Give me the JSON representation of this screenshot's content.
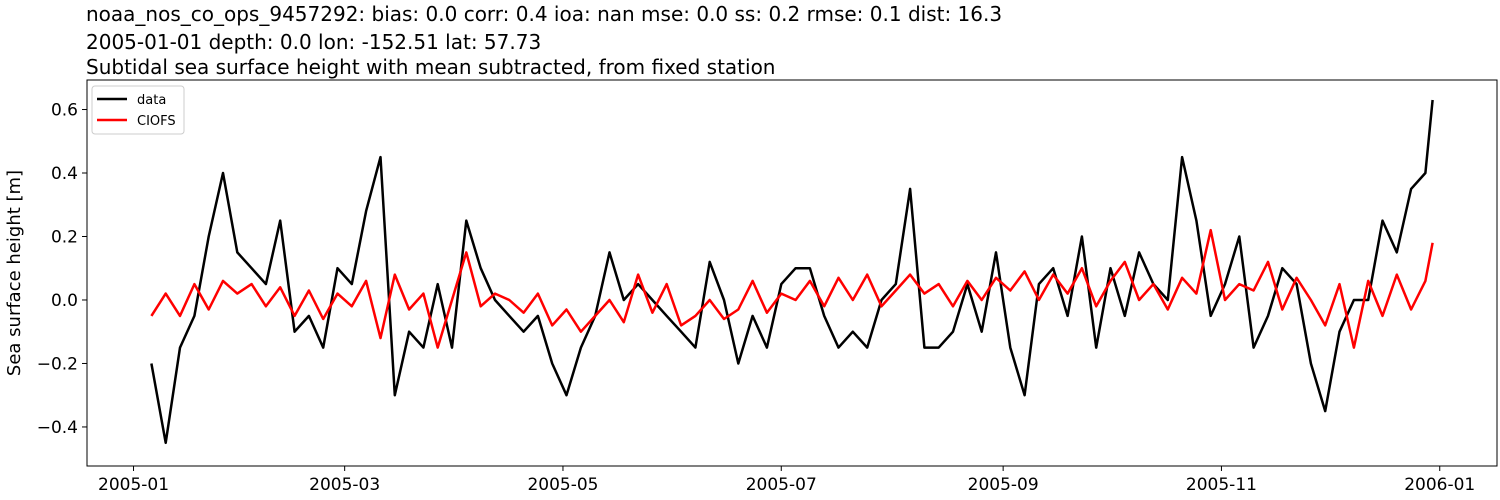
{
  "chart_data": {
    "type": "line",
    "title_lines": [
      "noaa_nos_co_ops_9457292: bias: 0.0  corr: 0.4  ioa: nan  mse: 0.0  ss: 0.2  rmse: 0.1  dist: 16.3",
      "2005-01-01 depth: 0.0 lon: -152.51 lat: 57.73",
      "Subtidal sea surface height with mean subtracted, from fixed station"
    ],
    "xlabel": "",
    "ylabel": "Sea surface height [m]",
    "xlim": [
      "2004-12-19",
      "2006-01-17"
    ],
    "ylim": [
      -0.523,
      0.693
    ],
    "x_ticks": [
      "2005-01",
      "2005-03",
      "2005-05",
      "2005-07",
      "2005-09",
      "2005-11",
      "2006-01"
    ],
    "y_ticks": [
      -0.4,
      -0.2,
      0.0,
      0.2,
      0.4,
      0.6
    ],
    "y_tick_labels": [
      "−0.4",
      "−0.2",
      "0.0",
      "0.2",
      "0.4",
      "0.6"
    ],
    "grid": false,
    "legend_position": "top-left",
    "x": [
      "2005-01-06",
      "2005-01-10",
      "2005-01-14",
      "2005-01-18",
      "2005-01-22",
      "2005-01-26",
      "2005-01-30",
      "2005-02-03",
      "2005-02-07",
      "2005-02-11",
      "2005-02-15",
      "2005-02-19",
      "2005-02-23",
      "2005-02-27",
      "2005-03-03",
      "2005-03-07",
      "2005-03-11",
      "2005-03-15",
      "2005-03-19",
      "2005-03-23",
      "2005-03-27",
      "2005-03-31",
      "2005-04-04",
      "2005-04-08",
      "2005-04-12",
      "2005-04-16",
      "2005-04-20",
      "2005-04-24",
      "2005-04-28",
      "2005-05-02",
      "2005-05-06",
      "2005-05-10",
      "2005-05-14",
      "2005-05-18",
      "2005-05-22",
      "2005-05-26",
      "2005-05-30",
      "2005-06-03",
      "2005-06-07",
      "2005-06-11",
      "2005-06-15",
      "2005-06-19",
      "2005-06-23",
      "2005-06-27",
      "2005-07-01",
      "2005-07-05",
      "2005-07-09",
      "2005-07-13",
      "2005-07-17",
      "2005-07-21",
      "2005-07-25",
      "2005-07-29",
      "2005-08-02",
      "2005-08-06",
      "2005-08-10",
      "2005-08-14",
      "2005-08-18",
      "2005-08-22",
      "2005-08-26",
      "2005-08-30",
      "2005-09-03",
      "2005-09-07",
      "2005-09-11",
      "2005-09-15",
      "2005-09-19",
      "2005-09-23",
      "2005-09-27",
      "2005-10-01",
      "2005-10-05",
      "2005-10-09",
      "2005-10-13",
      "2005-10-17",
      "2005-10-21",
      "2005-10-25",
      "2005-10-29",
      "2005-11-02",
      "2005-11-06",
      "2005-11-10",
      "2005-11-14",
      "2005-11-18",
      "2005-11-22",
      "2005-11-26",
      "2005-11-30",
      "2005-12-04",
      "2005-12-08",
      "2005-12-12",
      "2005-12-16",
      "2005-12-20",
      "2005-12-24",
      "2005-12-28",
      "2005-12-30"
    ],
    "series": [
      {
        "name": "data",
        "color": "#000000",
        "values": [
          -0.2,
          -0.45,
          -0.15,
          -0.05,
          0.2,
          0.4,
          0.15,
          0.1,
          0.05,
          0.25,
          -0.1,
          -0.05,
          -0.15,
          0.1,
          0.05,
          0.28,
          0.45,
          -0.3,
          -0.1,
          -0.15,
          0.05,
          -0.15,
          0.25,
          0.1,
          0.0,
          -0.05,
          -0.1,
          -0.05,
          -0.2,
          -0.3,
          -0.15,
          -0.05,
          0.15,
          0.0,
          0.05,
          0.0,
          -0.05,
          -0.1,
          -0.15,
          0.12,
          0.0,
          -0.2,
          -0.05,
          -0.15,
          0.05,
          0.1,
          0.1,
          -0.05,
          -0.15,
          -0.1,
          -0.15,
          0.0,
          0.05,
          0.35,
          -0.15,
          -0.15,
          -0.1,
          0.05,
          -0.1,
          0.15,
          -0.15,
          -0.3,
          0.05,
          0.1,
          -0.05,
          0.2,
          -0.15,
          0.1,
          -0.05,
          0.15,
          0.05,
          0.0,
          0.45,
          0.25,
          -0.05,
          0.05,
          0.2,
          -0.15,
          -0.05,
          0.1,
          0.05,
          -0.2,
          -0.35,
          -0.1,
          0.0,
          0.0,
          0.25,
          0.15,
          0.35,
          0.4,
          0.63
        ]
      },
      {
        "name": "CIOFS",
        "color": "#ff0000",
        "values": [
          -0.05,
          0.02,
          -0.05,
          0.05,
          -0.03,
          0.06,
          0.02,
          0.05,
          -0.02,
          0.04,
          -0.05,
          0.03,
          -0.06,
          0.02,
          -0.02,
          0.06,
          -0.12,
          0.08,
          -0.03,
          0.02,
          -0.15,
          0.0,
          0.15,
          -0.02,
          0.02,
          0.0,
          -0.04,
          0.02,
          -0.08,
          -0.03,
          -0.1,
          -0.05,
          0.0,
          -0.07,
          0.08,
          -0.04,
          0.05,
          -0.08,
          -0.05,
          0.0,
          -0.06,
          -0.03,
          0.06,
          -0.04,
          0.02,
          0.0,
          0.06,
          -0.02,
          0.07,
          0.0,
          0.08,
          -0.02,
          0.03,
          0.08,
          0.02,
          0.05,
          -0.02,
          0.06,
          0.0,
          0.07,
          0.03,
          0.09,
          0.0,
          0.08,
          0.02,
          0.1,
          -0.02,
          0.06,
          0.12,
          0.0,
          0.05,
          -0.03,
          0.07,
          0.02,
          0.22,
          0.0,
          0.05,
          0.03,
          0.12,
          -0.03,
          0.07,
          0.0,
          -0.08,
          0.05,
          -0.15,
          0.06,
          -0.05,
          0.08,
          -0.03,
          0.06,
          0.18
        ]
      }
    ]
  }
}
